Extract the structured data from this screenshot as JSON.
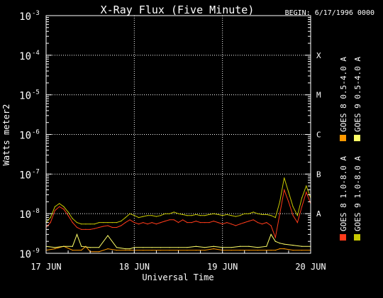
{
  "chart_data": {
    "type": "line",
    "title": "X-Ray Flux (Five Minute)",
    "begin": "BEGIN: 6/17/1996 0000",
    "xlabel": "Universal Time",
    "ylabel": "Watts meter2",
    "y_scale": "log",
    "ylim": [
      1e-09,
      0.001
    ],
    "xlim_days": [
      0,
      3
    ],
    "grid": true,
    "yticks": [
      {
        "base": "10",
        "exp": "-9",
        "value": 1e-09
      },
      {
        "base": "10",
        "exp": "-8",
        "value": 1e-08
      },
      {
        "base": "10",
        "exp": "-7",
        "value": 1e-07
      },
      {
        "base": "10",
        "exp": "-6",
        "value": 1e-06
      },
      {
        "base": "10",
        "exp": "-5",
        "value": 1e-05
      },
      {
        "base": "10",
        "exp": "-4",
        "value": 0.0001
      },
      {
        "base": "10",
        "exp": "-3",
        "value": 0.001
      }
    ],
    "xticks": [
      {
        "label": "17 JUN",
        "day": 0
      },
      {
        "label": "18 JUN",
        "day": 1
      },
      {
        "label": "19 JUN",
        "day": 2
      },
      {
        "label": "20 JUN",
        "day": 3
      }
    ],
    "flare_classes": [
      {
        "label": "A",
        "value": 1e-08
      },
      {
        "label": "B",
        "value": 1e-07
      },
      {
        "label": "C",
        "value": 1e-06
      },
      {
        "label": "M",
        "value": 1e-05
      },
      {
        "label": "X",
        "value": 0.0001
      }
    ],
    "legend_position": "right",
    "series": [
      {
        "name": "GOES 8 1.0-8.0 A",
        "color": "#ff3b1a",
        "x": [
          0.0,
          0.05,
          0.1,
          0.15,
          0.2,
          0.25,
          0.3,
          0.35,
          0.4,
          0.45,
          0.5,
          0.55,
          0.6,
          0.65,
          0.7,
          0.75,
          0.8,
          0.85,
          0.9,
          0.95,
          1.0,
          1.05,
          1.1,
          1.15,
          1.2,
          1.25,
          1.3,
          1.35,
          1.4,
          1.45,
          1.5,
          1.55,
          1.6,
          1.65,
          1.7,
          1.75,
          1.8,
          1.85,
          1.9,
          1.95,
          2.0,
          2.05,
          2.1,
          2.15,
          2.2,
          2.25,
          2.3,
          2.35,
          2.4,
          2.45,
          2.5,
          2.55,
          2.6,
          2.65,
          2.7,
          2.75,
          2.8,
          2.85,
          2.9,
          2.95,
          3.0
        ],
        "values": [
          4.5e-09,
          6e-09,
          1.2e-08,
          1.5e-08,
          1.3e-08,
          9e-09,
          6e-09,
          4.5e-09,
          4e-09,
          4e-09,
          4e-09,
          4.2e-09,
          4.5e-09,
          4.8e-09,
          5e-09,
          4.5e-09,
          4.5e-09,
          5e-09,
          6e-09,
          7e-09,
          6e-09,
          5.5e-09,
          6e-09,
          5.5e-09,
          6e-09,
          5.5e-09,
          6e-09,
          6.5e-09,
          7e-09,
          7e-09,
          6e-09,
          7e-09,
          6e-09,
          6e-09,
          6.5e-09,
          6e-09,
          6e-09,
          6e-09,
          6.5e-09,
          6e-09,
          5.5e-09,
          6e-09,
          5.5e-09,
          5e-09,
          5.5e-09,
          6e-09,
          6.5e-09,
          7e-09,
          6e-09,
          5.5e-09,
          6e-09,
          5e-09,
          2.5e-09,
          1e-08,
          4e-08,
          2e-08,
          9e-09,
          6e-09,
          1.5e-08,
          3.5e-08,
          1.8e-08
        ]
      },
      {
        "name": "GOES 9 1.0-8.0 A",
        "color": "#c8c800",
        "x": [
          0.0,
          0.05,
          0.1,
          0.15,
          0.2,
          0.25,
          0.3,
          0.35,
          0.4,
          0.45,
          0.5,
          0.55,
          0.6,
          0.65,
          0.7,
          0.75,
          0.8,
          0.85,
          0.9,
          0.95,
          1.0,
          1.05,
          1.1,
          1.15,
          1.2,
          1.25,
          1.3,
          1.35,
          1.4,
          1.45,
          1.5,
          1.55,
          1.6,
          1.65,
          1.7,
          1.75,
          1.8,
          1.85,
          1.9,
          1.95,
          2.0,
          2.05,
          2.1,
          2.15,
          2.2,
          2.25,
          2.3,
          2.35,
          2.4,
          2.45,
          2.5,
          2.55,
          2.6,
          2.65,
          2.7,
          2.75,
          2.8,
          2.85,
          2.9,
          2.95,
          3.0
        ],
        "values": [
          6e-09,
          8e-09,
          1.5e-08,
          1.8e-08,
          1.5e-08,
          1.1e-08,
          7.5e-09,
          6e-09,
          5.5e-09,
          5.5e-09,
          5.5e-09,
          5.5e-09,
          6e-09,
          6e-09,
          6e-09,
          6e-09,
          6e-09,
          6.5e-09,
          8e-09,
          1e-08,
          9e-09,
          8e-09,
          8.5e-09,
          9e-09,
          9e-09,
          8.5e-09,
          9e-09,
          1e-08,
          1e-08,
          1.1e-08,
          1e-08,
          9.5e-09,
          9e-09,
          9e-09,
          9.5e-09,
          9e-09,
          9e-09,
          9.5e-09,
          1e-08,
          9.5e-09,
          9e-09,
          9.5e-09,
          9e-09,
          8.5e-09,
          9e-09,
          1e-08,
          1e-08,
          1.1e-08,
          1e-08,
          9.5e-09,
          9.5e-09,
          9e-09,
          8e-09,
          2e-08,
          8e-08,
          3.5e-08,
          1.5e-08,
          9e-09,
          2.5e-08,
          5e-08,
          2.5e-08
        ]
      },
      {
        "name": "GOES 8 0.5-4.0 A",
        "color": "#ff9900",
        "x": [
          0.0,
          0.1,
          0.2,
          0.3,
          0.4,
          0.45,
          0.5,
          0.6,
          0.7,
          0.8,
          0.9,
          0.95,
          1.0,
          1.1,
          1.2,
          1.3,
          1.4,
          1.5,
          1.6,
          1.7,
          1.8,
          1.9,
          2.0,
          2.1,
          2.2,
          2.3,
          2.4,
          2.5,
          2.55,
          2.6,
          2.65,
          2.7,
          2.8,
          2.9,
          3.0
        ],
        "values": [
          1.2e-09,
          1.3e-09,
          1.5e-09,
          1.2e-09,
          1.2e-09,
          1.5e-09,
          1.1e-09,
          1.1e-09,
          1.3e-09,
          1.2e-09,
          1.2e-09,
          1.2e-09,
          1.2e-09,
          1.2e-09,
          1.2e-09,
          1.2e-09,
          1.2e-09,
          1.2e-09,
          1.2e-09,
          1.2e-09,
          1.2e-09,
          1.3e-09,
          1.2e-09,
          1.2e-09,
          1.2e-09,
          1.2e-09,
          1.2e-09,
          1.2e-09,
          1.2e-09,
          1.2e-09,
          1.3e-09,
          1.3e-09,
          1.2e-09,
          1.2e-09,
          1.2e-09
        ]
      },
      {
        "name": "GOES 9 0.5-4.0 A",
        "color": "#ffff66",
        "x": [
          0.0,
          0.1,
          0.2,
          0.3,
          0.35,
          0.4,
          0.5,
          0.6,
          0.7,
          0.8,
          0.9,
          0.95,
          1.0,
          1.1,
          1.2,
          1.3,
          1.4,
          1.5,
          1.6,
          1.7,
          1.8,
          1.9,
          2.0,
          2.1,
          2.2,
          2.3,
          2.4,
          2.5,
          2.55,
          2.6,
          2.65,
          2.7,
          2.8,
          2.9,
          3.0
        ],
        "values": [
          1.5e-09,
          1.4e-09,
          1.5e-09,
          1.5e-09,
          3e-09,
          1.5e-09,
          1.4e-09,
          1.4e-09,
          2.8e-09,
          1.4e-09,
          1.3e-09,
          1.3e-09,
          1.4e-09,
          1.4e-09,
          1.4e-09,
          1.4e-09,
          1.4e-09,
          1.4e-09,
          1.4e-09,
          1.5e-09,
          1.4e-09,
          1.5e-09,
          1.4e-09,
          1.4e-09,
          1.5e-09,
          1.5e-09,
          1.4e-09,
          1.5e-09,
          3e-09,
          2e-09,
          1.8e-09,
          1.7e-09,
          1.6e-09,
          1.5e-09,
          1.5e-09
        ]
      }
    ]
  }
}
